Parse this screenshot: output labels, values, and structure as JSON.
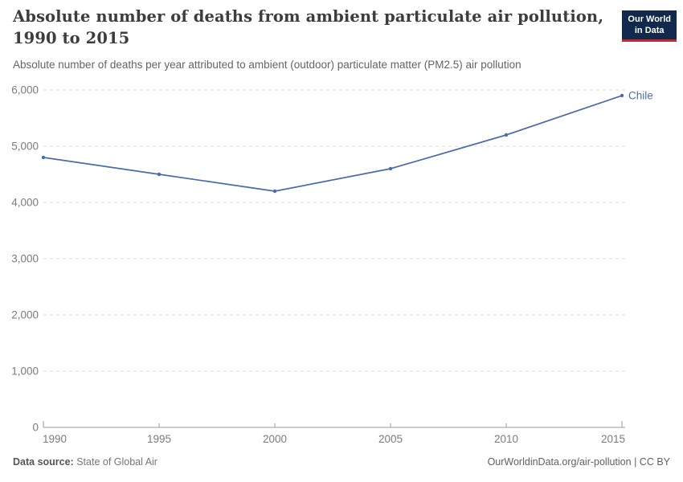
{
  "header": {
    "logo": {
      "line1": "Our World",
      "line2": "in Data"
    }
  },
  "chart_data": {
    "type": "line",
    "title": "Absolute number of deaths from ambient particulate air pollution, 1990 to 2015",
    "subtitle": "Absolute number of deaths per year attributed to ambient (outdoor) particulate matter (PM2.5) air pollution",
    "x": [
      1990,
      1995,
      2000,
      2005,
      2010,
      2015
    ],
    "series": [
      {
        "name": "Chile",
        "values": [
          4800,
          4500,
          4200,
          4600,
          5200,
          5900
        ]
      }
    ],
    "xlabel": "",
    "ylabel": "",
    "xlim": [
      1990,
      2015
    ],
    "ylim": [
      0,
      6000
    ],
    "xticks": [
      {
        "value": 1990,
        "label": "1990"
      },
      {
        "value": 1995,
        "label": "1995"
      },
      {
        "value": 2000,
        "label": "2000"
      },
      {
        "value": 2005,
        "label": "2005"
      },
      {
        "value": 2010,
        "label": "2010"
      },
      {
        "value": 2015,
        "label": "2015"
      }
    ],
    "yticks": [
      {
        "value": 0,
        "label": "0"
      },
      {
        "value": 1000,
        "label": "1,000"
      },
      {
        "value": 2000,
        "label": "2,000"
      },
      {
        "value": 3000,
        "label": "3,000"
      },
      {
        "value": 4000,
        "label": "4,000"
      },
      {
        "value": 5000,
        "label": "5,000"
      },
      {
        "value": 6000,
        "label": "6,000"
      }
    ],
    "grid": "horizontal-dashed",
    "legend_position": "end-of-line-label"
  },
  "footer": {
    "source_label": "Data source:",
    "source_value": "State of Global Air",
    "url": "OurWorldinData.org/air-pollution",
    "divider": " | ",
    "license": "CC BY"
  },
  "colors": {
    "line": "#4a6ca6",
    "grid": "#dedede",
    "axis": "#999999",
    "tick_text": "#7c7c7c",
    "title_text": "#3d3d3d",
    "subtitle_text": "#646464",
    "footer_text": "#616161",
    "logo_bg": "#12294e",
    "logo_stripe": "#c5292e"
  }
}
